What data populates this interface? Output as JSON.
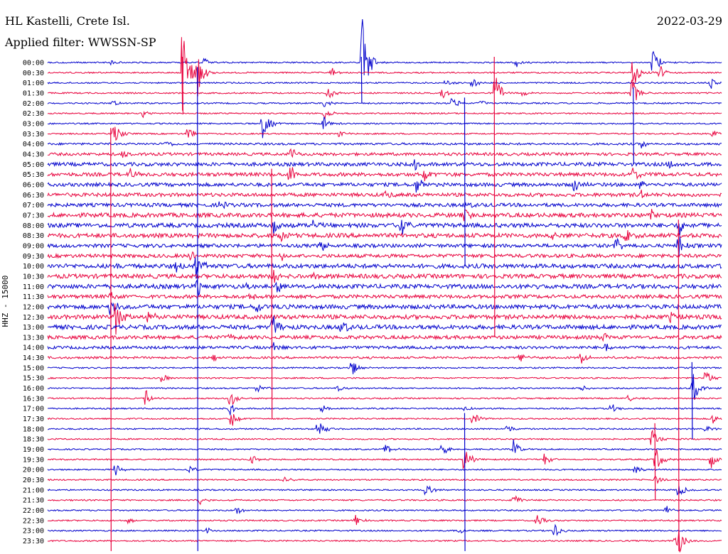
{
  "header": {
    "station": "HL Kastelli, Crete Isl.",
    "filter": "Applied filter: WWSSN-SP",
    "date": "2022-03-29"
  },
  "chart_data": {
    "type": "line",
    "title": "HL Kastelli, Crete Isl.",
    "subtitle": "Applied filter: WWSSN-SP",
    "date": "2022-03-29",
    "ylabel": "HHZ - 15000",
    "xlabel": "",
    "row_interval_minutes": 30,
    "series_colors": [
      "#0000cc",
      "#e8003c"
    ],
    "row_labels": [
      "00:00",
      "00:30",
      "01:00",
      "01:30",
      "02:00",
      "02:30",
      "03:00",
      "03:30",
      "04:00",
      "04:30",
      "05:00",
      "05:30",
      "06:00",
      "06:30",
      "07:00",
      "07:30",
      "08:00",
      "08:30",
      "09:00",
      "09:30",
      "10:00",
      "10:30",
      "11:00",
      "11:30",
      "12:00",
      "12:30",
      "13:00",
      "13:30",
      "14:00",
      "14:30",
      "15:00",
      "15:30",
      "16:00",
      "16:30",
      "17:00",
      "17:30",
      "18:00",
      "18:30",
      "19:00",
      "19:30",
      "20:00",
      "20:30",
      "21:00",
      "21:30",
      "22:00",
      "22:30",
      "23:00",
      "23:30"
    ],
    "noise_level": [
      2,
      2,
      2,
      2,
      2,
      2,
      2,
      2,
      3,
      4,
      5,
      5,
      5,
      5,
      5,
      6,
      6,
      6,
      5,
      5,
      6,
      6,
      6,
      5,
      6,
      6,
      6,
      5,
      4,
      3,
      2,
      2,
      2,
      2,
      2,
      2,
      2,
      2,
      2,
      2,
      2,
      2,
      2,
      2,
      2,
      2,
      2,
      2
    ],
    "events": [
      {
        "row": 0,
        "t": 0.465,
        "amp": 80
      },
      {
        "row": 0,
        "t": 0.232,
        "amp": 8
      },
      {
        "row": 0,
        "t": 0.695,
        "amp": 6
      },
      {
        "row": 0,
        "t": 0.897,
        "amp": 24
      },
      {
        "row": 0,
        "t": 0.093,
        "amp": 4
      },
      {
        "row": 1,
        "t": 0.2,
        "amp": 88
      },
      {
        "row": 1,
        "t": 0.222,
        "amp": 36
      },
      {
        "row": 1,
        "t": 0.42,
        "amp": 8
      },
      {
        "row": 1,
        "t": 0.868,
        "amp": 30
      },
      {
        "row": 1,
        "t": 0.907,
        "amp": 12
      },
      {
        "row": 2,
        "t": 0.627,
        "amp": 10
      },
      {
        "row": 2,
        "t": 0.983,
        "amp": 10
      },
      {
        "row": 2,
        "t": 0.59,
        "amp": 6
      },
      {
        "row": 3,
        "t": 0.663,
        "amp": 30
      },
      {
        "row": 3,
        "t": 0.865,
        "amp": 26
      },
      {
        "row": 3,
        "t": 0.705,
        "amp": 6
      },
      {
        "row": 3,
        "t": 0.415,
        "amp": 10
      },
      {
        "row": 3,
        "t": 0.585,
        "amp": 8
      },
      {
        "row": 4,
        "t": 0.6,
        "amp": 12
      },
      {
        "row": 4,
        "t": 0.64,
        "amp": 6
      },
      {
        "row": 4,
        "t": 0.407,
        "amp": 10
      },
      {
        "row": 4,
        "t": 0.095,
        "amp": 6
      },
      {
        "row": 5,
        "t": 0.41,
        "amp": 10
      },
      {
        "row": 5,
        "t": 0.14,
        "amp": 6
      },
      {
        "row": 6,
        "t": 0.318,
        "amp": 30
      },
      {
        "row": 6,
        "t": 0.409,
        "amp": 14
      },
      {
        "row": 7,
        "t": 0.098,
        "amp": 18
      },
      {
        "row": 7,
        "t": 0.208,
        "amp": 10
      },
      {
        "row": 7,
        "t": 0.43,
        "amp": 6
      },
      {
        "row": 7,
        "t": 0.985,
        "amp": 6
      },
      {
        "row": 8,
        "t": 0.175,
        "amp": 6
      },
      {
        "row": 8,
        "t": 0.88,
        "amp": 6
      },
      {
        "row": 9,
        "t": 0.36,
        "amp": 10
      },
      {
        "row": 9,
        "t": 0.11,
        "amp": 6
      },
      {
        "row": 10,
        "t": 0.545,
        "amp": 14
      },
      {
        "row": 10,
        "t": 0.92,
        "amp": 8
      },
      {
        "row": 11,
        "t": 0.358,
        "amp": 18
      },
      {
        "row": 11,
        "t": 0.558,
        "amp": 12
      },
      {
        "row": 11,
        "t": 0.868,
        "amp": 14
      },
      {
        "row": 11,
        "t": 0.122,
        "amp": 8
      },
      {
        "row": 12,
        "t": 0.545,
        "amp": 16
      },
      {
        "row": 12,
        "t": 0.78,
        "amp": 14
      },
      {
        "row": 12,
        "t": 0.877,
        "amp": 10
      },
      {
        "row": 13,
        "t": 0.5,
        "amp": 8
      },
      {
        "row": 13,
        "t": 0.875,
        "amp": 12
      },
      {
        "row": 14,
        "t": 0.255,
        "amp": 6
      },
      {
        "row": 14,
        "t": 0.62,
        "amp": 6
      },
      {
        "row": 15,
        "t": 0.618,
        "amp": 10
      },
      {
        "row": 15,
        "t": 0.893,
        "amp": 10
      },
      {
        "row": 16,
        "t": 0.335,
        "amp": 16
      },
      {
        "row": 16,
        "t": 0.393,
        "amp": 10
      },
      {
        "row": 16,
        "t": 0.523,
        "amp": 16
      },
      {
        "row": 16,
        "t": 0.935,
        "amp": 22
      },
      {
        "row": 17,
        "t": 0.345,
        "amp": 14
      },
      {
        "row": 17,
        "t": 0.744,
        "amp": 12
      },
      {
        "row": 17,
        "t": 0.855,
        "amp": 14
      },
      {
        "row": 18,
        "t": 0.405,
        "amp": 10
      },
      {
        "row": 18,
        "t": 0.84,
        "amp": 14
      },
      {
        "row": 18,
        "t": 0.935,
        "amp": 20
      },
      {
        "row": 19,
        "t": 0.21,
        "amp": 10
      },
      {
        "row": 19,
        "t": 0.345,
        "amp": 8
      },
      {
        "row": 20,
        "t": 0.19,
        "amp": 8
      },
      {
        "row": 20,
        "t": 0.22,
        "amp": 20
      },
      {
        "row": 20,
        "t": 0.1,
        "amp": 6
      },
      {
        "row": 21,
        "t": 0.335,
        "amp": 14
      },
      {
        "row": 21,
        "t": 0.395,
        "amp": 6
      },
      {
        "row": 22,
        "t": 0.222,
        "amp": 18
      },
      {
        "row": 22,
        "t": 0.295,
        "amp": 8
      },
      {
        "row": 22,
        "t": 0.34,
        "amp": 12
      },
      {
        "row": 22,
        "t": 0.72,
        "amp": 6
      },
      {
        "row": 23,
        "t": 0.092,
        "amp": 10
      },
      {
        "row": 23,
        "t": 0.3,
        "amp": 6
      },
      {
        "row": 24,
        "t": 0.093,
        "amp": 18
      },
      {
        "row": 24,
        "t": 0.31,
        "amp": 10
      },
      {
        "row": 25,
        "t": 0.1,
        "amp": 30
      },
      {
        "row": 25,
        "t": 0.147,
        "amp": 12
      },
      {
        "row": 25,
        "t": 0.92,
        "amp": 10
      },
      {
        "row": 26,
        "t": 0.332,
        "amp": 28
      },
      {
        "row": 26,
        "t": 0.435,
        "amp": 14
      },
      {
        "row": 27,
        "t": 0.82,
        "amp": 14
      },
      {
        "row": 27,
        "t": 0.27,
        "amp": 6
      },
      {
        "row": 28,
        "t": 0.826,
        "amp": 10
      },
      {
        "row": 28,
        "t": 0.335,
        "amp": 14
      },
      {
        "row": 29,
        "t": 0.245,
        "amp": 6
      },
      {
        "row": 29,
        "t": 0.7,
        "amp": 8
      },
      {
        "row": 29,
        "t": 0.79,
        "amp": 10
      },
      {
        "row": 30,
        "t": 0.45,
        "amp": 14
      },
      {
        "row": 31,
        "t": 0.17,
        "amp": 8
      },
      {
        "row": 31,
        "t": 0.975,
        "amp": 14
      },
      {
        "row": 32,
        "t": 0.955,
        "amp": 30
      },
      {
        "row": 32,
        "t": 0.31,
        "amp": 8
      },
      {
        "row": 32,
        "t": 0.43,
        "amp": 6
      },
      {
        "row": 32,
        "t": 0.79,
        "amp": 6
      },
      {
        "row": 33,
        "t": 0.145,
        "amp": 14
      },
      {
        "row": 33,
        "t": 0.27,
        "amp": 16
      },
      {
        "row": 33,
        "t": 0.86,
        "amp": 6
      },
      {
        "row": 34,
        "t": 0.27,
        "amp": 10
      },
      {
        "row": 34,
        "t": 0.405,
        "amp": 10
      },
      {
        "row": 34,
        "t": 0.618,
        "amp": 8
      },
      {
        "row": 34,
        "t": 0.835,
        "amp": 8
      },
      {
        "row": 35,
        "t": 0.272,
        "amp": 16
      },
      {
        "row": 35,
        "t": 0.63,
        "amp": 10
      },
      {
        "row": 35,
        "t": 0.985,
        "amp": 8
      },
      {
        "row": 36,
        "t": 0.4,
        "amp": 18
      },
      {
        "row": 36,
        "t": 0.68,
        "amp": 8
      },
      {
        "row": 36,
        "t": 0.975,
        "amp": 6
      },
      {
        "row": 37,
        "t": 0.895,
        "amp": 18
      },
      {
        "row": 38,
        "t": 0.5,
        "amp": 10
      },
      {
        "row": 38,
        "t": 0.585,
        "amp": 10
      },
      {
        "row": 38,
        "t": 0.69,
        "amp": 14
      },
      {
        "row": 39,
        "t": 0.617,
        "amp": 24
      },
      {
        "row": 39,
        "t": 0.9,
        "amp": 22
      },
      {
        "row": 39,
        "t": 0.3,
        "amp": 10
      },
      {
        "row": 39,
        "t": 0.735,
        "amp": 10
      },
      {
        "row": 39,
        "t": 0.983,
        "amp": 14
      },
      {
        "row": 40,
        "t": 0.1,
        "amp": 10
      },
      {
        "row": 40,
        "t": 0.21,
        "amp": 8
      },
      {
        "row": 40,
        "t": 0.87,
        "amp": 8
      },
      {
        "row": 41,
        "t": 0.9,
        "amp": 8
      },
      {
        "row": 41,
        "t": 0.35,
        "amp": 6
      },
      {
        "row": 42,
        "t": 0.56,
        "amp": 12
      },
      {
        "row": 42,
        "t": 0.935,
        "amp": 12
      },
      {
        "row": 43,
        "t": 0.69,
        "amp": 12
      },
      {
        "row": 43,
        "t": 0.225,
        "amp": 8
      },
      {
        "row": 44,
        "t": 0.915,
        "amp": 8
      },
      {
        "row": 44,
        "t": 0.28,
        "amp": 6
      },
      {
        "row": 45,
        "t": 0.455,
        "amp": 12
      },
      {
        "row": 45,
        "t": 0.725,
        "amp": 10
      },
      {
        "row": 45,
        "t": 0.12,
        "amp": 6
      },
      {
        "row": 46,
        "t": 0.75,
        "amp": 14
      },
      {
        "row": 46,
        "t": 0.61,
        "amp": 6
      },
      {
        "row": 46,
        "t": 0.235,
        "amp": 6
      },
      {
        "row": 47,
        "t": 0.935,
        "amp": 22
      },
      {
        "row": 47,
        "t": 0.93,
        "amp": 8
      }
    ],
    "long_traces": [
      {
        "t": 0.2,
        "from_row": 0,
        "to_row": 5
      },
      {
        "t": 0.222,
        "from_row": 1,
        "to_row": 48
      },
      {
        "t": 0.0935,
        "from_row": 7,
        "to_row": 48
      },
      {
        "t": 0.465,
        "from_row": 0,
        "to_row": 4
      },
      {
        "t": 0.662,
        "from_row": 0,
        "to_row": 27
      },
      {
        "t": 0.868,
        "from_row": 3,
        "to_row": 10
      },
      {
        "t": 0.935,
        "from_row": 16,
        "to_row": 48
      },
      {
        "t": 0.618,
        "from_row": 35,
        "to_row": 48
      },
      {
        "t": 0.332,
        "from_row": 11,
        "to_row": 35
      },
      {
        "t": 0.955,
        "from_row": 30,
        "to_row": 37
      },
      {
        "t": 0.9,
        "from_row": 36,
        "to_row": 43
      },
      {
        "t": 0.618,
        "from_row": 4,
        "to_row": 20
      }
    ]
  }
}
